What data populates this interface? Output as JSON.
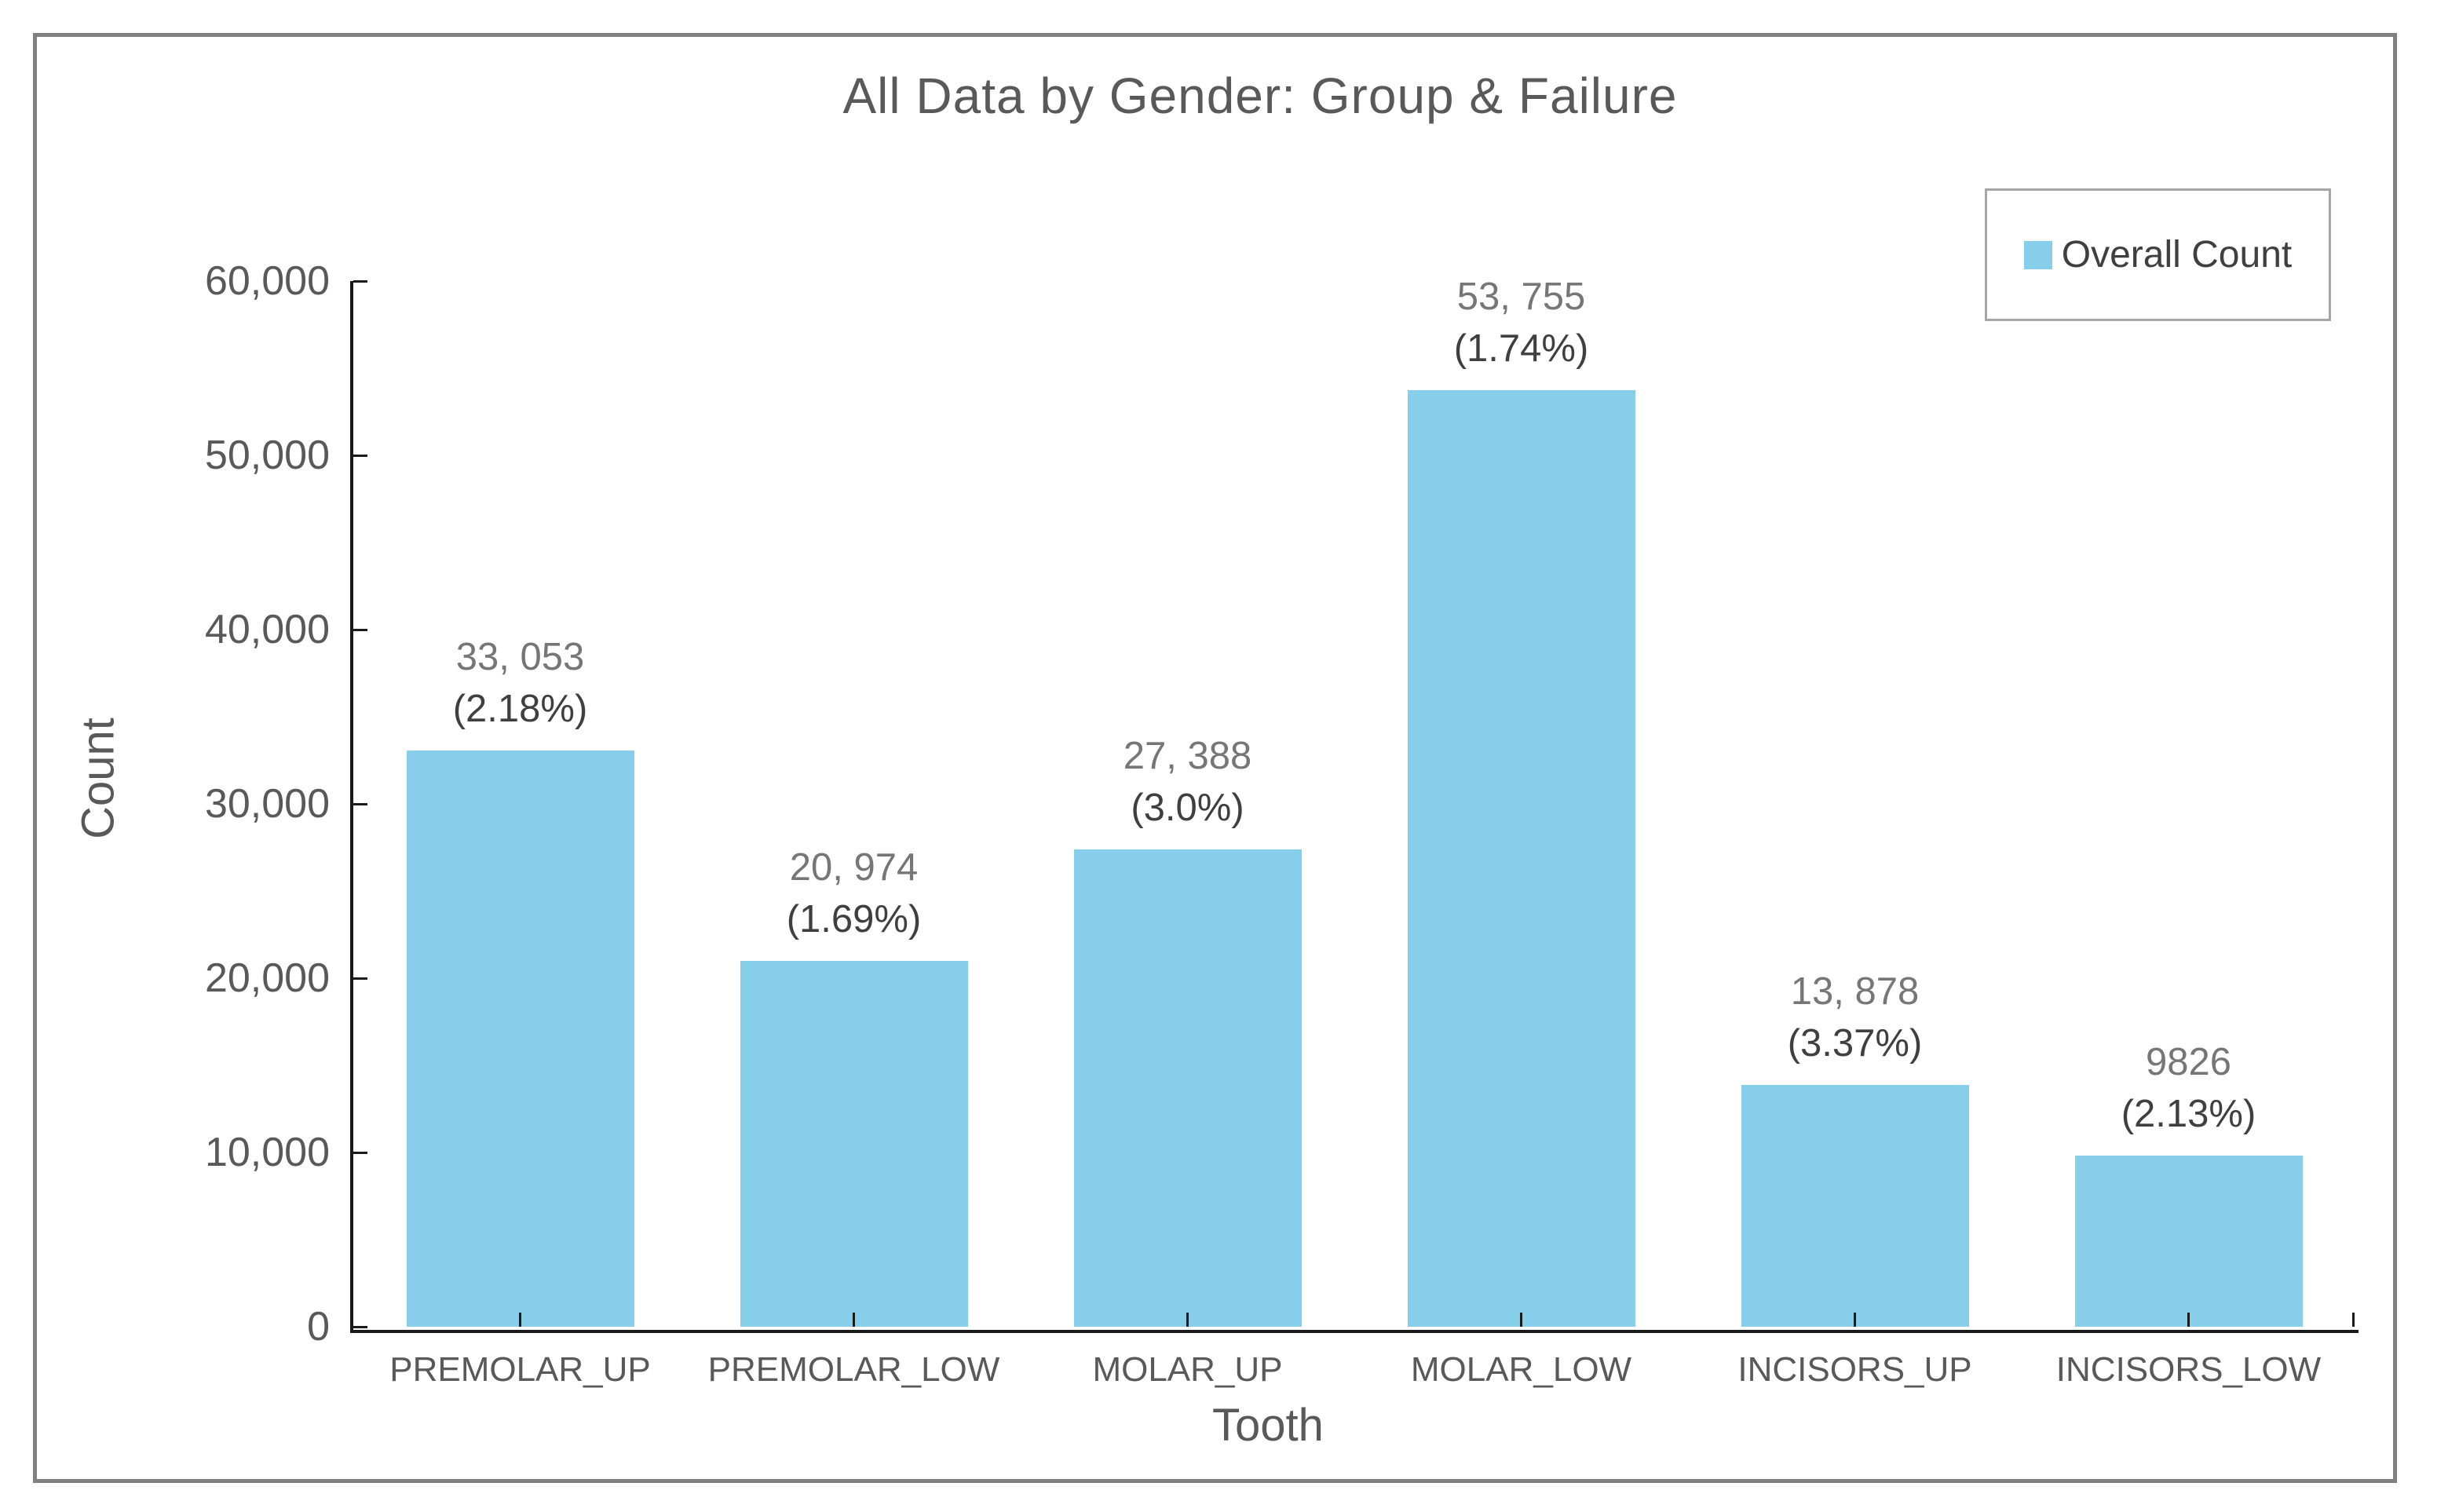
{
  "chart_data": {
    "type": "bar",
    "title": "All Data by Gender: Group & Failure",
    "xlabel": "Tooth",
    "ylabel": "Count",
    "categories": [
      "PREMOLAR_UP",
      "PREMOLAR_LOW",
      "MOLAR_UP",
      "MOLAR_LOW",
      "INCISORS_UP",
      "INCISORS_LOW"
    ],
    "series": [
      {
        "name": "Overall Count",
        "values": [
          33053,
          20974,
          27388,
          53755,
          13878,
          9826
        ]
      }
    ],
    "bar_value_labels": [
      "33, 053",
      "20, 974",
      "27, 388",
      "53, 755",
      "13, 878",
      "9826"
    ],
    "bar_pct_labels": [
      "(2.18%)",
      "(1.69%)",
      "(3.0%)",
      "(1.74%)",
      "(3.37%)",
      "(2.13%)"
    ],
    "percentages": [
      2.18,
      1.69,
      3.0,
      1.74,
      3.37,
      2.13
    ],
    "ylim": [
      0,
      60000
    ],
    "ytick_step": 10000,
    "ytick_labels": [
      "0",
      "10,000",
      "20,000",
      "30,000",
      "40,000",
      "50,000",
      "60,000"
    ],
    "grid": false,
    "legend": {
      "label": "Overall Count",
      "position": "upper right"
    },
    "colors": {
      "bar": "#87CEEB",
      "title_text": "#595959",
      "tick_text": "#595959",
      "value_label_text": "#767676",
      "pct_label_text": "#3F3F3F",
      "axis_line": "#1A1A1A",
      "figure_border": "#808080",
      "legend_border": "#A6A6A6"
    }
  }
}
